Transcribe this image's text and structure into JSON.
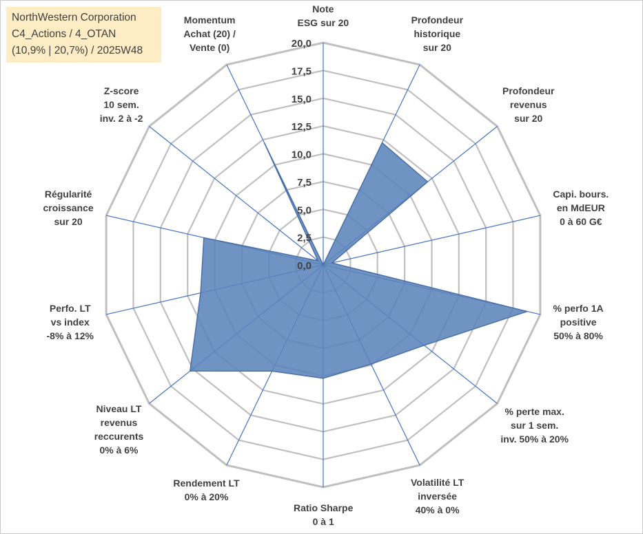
{
  "title": {
    "line1": "NorthWestern Corporation",
    "line2": "C4_Actions / 4_OTAN",
    "line3": "(10,9% | 20,7%) / 2025W48"
  },
  "colors": {
    "grid": "#bfbfbf",
    "spoke": "#4472c4",
    "fill": "#5b84bb",
    "outline": "#4a6fa5",
    "text": "#404040",
    "title_bg": "#fdecc4"
  },
  "chart_data": {
    "type": "radar",
    "title": "NorthWestern Corporation",
    "rmin": 0,
    "rmax": 20,
    "tick_step": 2.5,
    "tick_labels": [
      "0,0",
      "2,5",
      "5,0",
      "7,5",
      "10,0",
      "12,5",
      "15,0",
      "17,5",
      "20,0"
    ],
    "axes": [
      {
        "label": [
          "Note",
          "ESG sur 20"
        ],
        "value": 0
      },
      {
        "label": [
          "Profondeur",
          "historique",
          "sur 20"
        ],
        "value": 12.2
      },
      {
        "label": [
          "Profondeur",
          "revenus",
          "sur 20"
        ],
        "value": 12.0
      },
      {
        "label": [
          "Capi. bours.",
          "en MdEUR",
          "0 à 60 G€"
        ],
        "value": 0.8
      },
      {
        "label": [
          "% perfo 1A",
          "positive",
          "50% à 80%"
        ],
        "value": 18.8
      },
      {
        "label": [
          "% perte max.",
          "sur 1 sem.",
          "inv. 50% à 20%"
        ],
        "value": 11.6
      },
      {
        "label": [
          "Volatilité LT",
          "inversée",
          "40% à 0%"
        ],
        "value": 9.9
      },
      {
        "label": [
          "Ratio Sharpe",
          "0 à 1"
        ],
        "value": 10.2
      },
      {
        "label": [
          "Rendement LT",
          "0% à 20%"
        ],
        "value": 10.6
      },
      {
        "label": [
          "Niveau LT",
          "revenus",
          "reccurents",
          "0% à 6%"
        ],
        "value": 15.3
      },
      {
        "label": [
          "Perfo. LT",
          "vs index",
          "-8% à 12%"
        ],
        "value": 11.3
      },
      {
        "label": [
          "Régularité",
          "croissance",
          "sur 20"
        ],
        "value": 11.0
      },
      {
        "label": [
          "Z-score",
          "10 sem.",
          "inv. 2 à -2"
        ],
        "value": 0.6
      },
      {
        "label": [
          "Momentum",
          "Achat (20) /",
          "Vente (0)"
        ],
        "value": 12.2
      }
    ]
  }
}
